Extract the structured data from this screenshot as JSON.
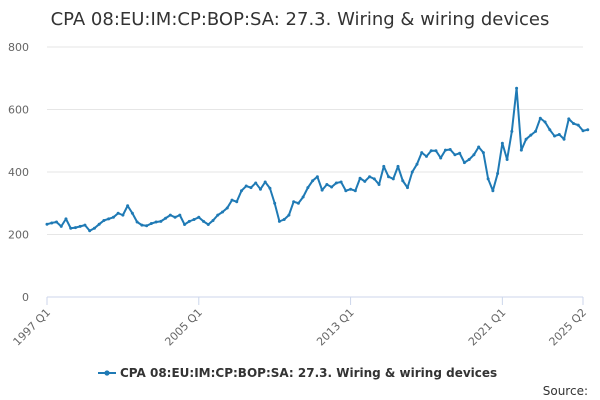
{
  "chart_data": {
    "type": "line",
    "title": "CPA 08:EU:IM:CP:BOP:SA: 27.3. Wiring & wiring devices",
    "xlabel": "",
    "ylabel": "",
    "ylim": [
      0,
      800
    ],
    "y_ticks": [
      0,
      200,
      400,
      600,
      800
    ],
    "x_ticks": [
      "1997 Q1",
      "2005 Q1",
      "2013 Q1",
      "2021 Q1",
      "2025 Q2"
    ],
    "grid": true,
    "legend": "bottom-center",
    "series": [
      {
        "name": "CPA 08:EU:IM:CP:BOP:SA: 27.3. Wiring & wiring devices",
        "color": "#1f7ab5",
        "points": [
          [
            "1997 Q1",
            233
          ],
          [
            "1997 Q2",
            237
          ],
          [
            "1997 Q3",
            240
          ],
          [
            "1997 Q4",
            226
          ],
          [
            "1998 Q1",
            250
          ],
          [
            "1998 Q2",
            220
          ],
          [
            "1998 Q3",
            222
          ],
          [
            "1998 Q4",
            226
          ],
          [
            "1999 Q1",
            230
          ],
          [
            "1999 Q2",
            212
          ],
          [
            "1999 Q3",
            220
          ],
          [
            "1999 Q4",
            233
          ],
          [
            "2000 Q1",
            245
          ],
          [
            "2000 Q2",
            250
          ],
          [
            "2000 Q3",
            255
          ],
          [
            "2000 Q4",
            268
          ],
          [
            "2001 Q1",
            262
          ],
          [
            "2001 Q2",
            292
          ],
          [
            "2001 Q3",
            268
          ],
          [
            "2001 Q4",
            240
          ],
          [
            "2002 Q1",
            230
          ],
          [
            "2002 Q2",
            228
          ],
          [
            "2002 Q3",
            235
          ],
          [
            "2002 Q4",
            240
          ],
          [
            "2003 Q1",
            242
          ],
          [
            "2003 Q2",
            252
          ],
          [
            "2003 Q3",
            262
          ],
          [
            "2003 Q4",
            255
          ],
          [
            "2004 Q1",
            262
          ],
          [
            "2004 Q2",
            232
          ],
          [
            "2004 Q3",
            242
          ],
          [
            "2004 Q4",
            248
          ],
          [
            "2005 Q1",
            255
          ],
          [
            "2005 Q2",
            242
          ],
          [
            "2005 Q3",
            232
          ],
          [
            "2005 Q4",
            245
          ],
          [
            "2006 Q1",
            262
          ],
          [
            "2006 Q2",
            272
          ],
          [
            "2006 Q3",
            285
          ],
          [
            "2006 Q4",
            310
          ],
          [
            "2007 Q1",
            305
          ],
          [
            "2007 Q2",
            340
          ],
          [
            "2007 Q3",
            355
          ],
          [
            "2007 Q4",
            350
          ],
          [
            "2008 Q1",
            365
          ],
          [
            "2008 Q2",
            345
          ],
          [
            "2008 Q3",
            368
          ],
          [
            "2008 Q4",
            348
          ],
          [
            "2009 Q1",
            300
          ],
          [
            "2009 Q2",
            242
          ],
          [
            "2009 Q3",
            248
          ],
          [
            "2009 Q4",
            262
          ],
          [
            "2010 Q1",
            305
          ],
          [
            "2010 Q2",
            300
          ],
          [
            "2010 Q3",
            320
          ],
          [
            "2010 Q4",
            350
          ],
          [
            "2011 Q1",
            372
          ],
          [
            "2011 Q2",
            385
          ],
          [
            "2011 Q3",
            342
          ],
          [
            "2011 Q4",
            360
          ],
          [
            "2012 Q1",
            352
          ],
          [
            "2012 Q2",
            365
          ],
          [
            "2012 Q3",
            368
          ],
          [
            "2012 Q4",
            340
          ],
          [
            "2013 Q1",
            345
          ],
          [
            "2013 Q2",
            340
          ],
          [
            "2013 Q3",
            380
          ],
          [
            "2013 Q4",
            370
          ],
          [
            "2014 Q1",
            385
          ],
          [
            "2014 Q2",
            378
          ],
          [
            "2014 Q3",
            360
          ],
          [
            "2014 Q4",
            418
          ],
          [
            "2015 Q1",
            385
          ],
          [
            "2015 Q2",
            378
          ],
          [
            "2015 Q3",
            418
          ],
          [
            "2015 Q4",
            372
          ],
          [
            "2016 Q1",
            350
          ],
          [
            "2016 Q2",
            400
          ],
          [
            "2016 Q3",
            425
          ],
          [
            "2016 Q4",
            462
          ],
          [
            "2017 Q1",
            450
          ],
          [
            "2017 Q2",
            468
          ],
          [
            "2017 Q3",
            468
          ],
          [
            "2017 Q4",
            445
          ],
          [
            "2018 Q1",
            470
          ],
          [
            "2018 Q2",
            472
          ],
          [
            "2018 Q3",
            455
          ],
          [
            "2018 Q4",
            460
          ],
          [
            "2019 Q1",
            430
          ],
          [
            "2019 Q2",
            440
          ],
          [
            "2019 Q3",
            455
          ],
          [
            "2019 Q4",
            480
          ],
          [
            "2020 Q1",
            462
          ],
          [
            "2020 Q2",
            378
          ],
          [
            "2020 Q3",
            340
          ],
          [
            "2020 Q4",
            395
          ],
          [
            "2021 Q1",
            492
          ],
          [
            "2021 Q2",
            440
          ],
          [
            "2021 Q3",
            530
          ],
          [
            "2021 Q4",
            668
          ],
          [
            "2022 Q1",
            470
          ],
          [
            "2022 Q2",
            505
          ],
          [
            "2022 Q3",
            518
          ],
          [
            "2022 Q4",
            530
          ],
          [
            "2023 Q1",
            572
          ],
          [
            "2023 Q2",
            560
          ],
          [
            "2023 Q3",
            535
          ],
          [
            "2023 Q4",
            515
          ],
          [
            "2024 Q1",
            520
          ],
          [
            "2024 Q2",
            505
          ],
          [
            "2024 Q3",
            570
          ],
          [
            "2024 Q4",
            555
          ],
          [
            "2025 Q1",
            550
          ],
          [
            "2025 Q2",
            532
          ],
          [
            "2025 Q3",
            535
          ]
        ]
      }
    ]
  },
  "footer": {
    "source_label": "Source:"
  }
}
